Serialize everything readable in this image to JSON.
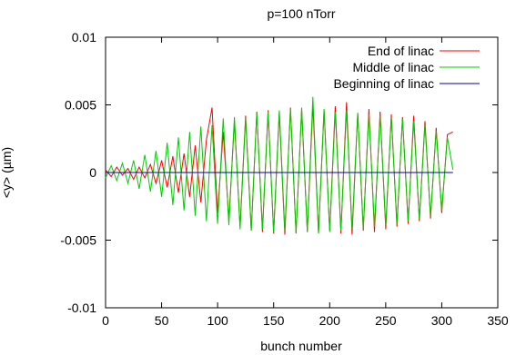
{
  "chart_data": {
    "type": "line",
    "title": "p=100 nTorr",
    "xlabel": "bunch number",
    "ylabel": "<y> (µm)",
    "xlim": [
      0,
      350
    ],
    "ylim": [
      -0.01,
      0.01
    ],
    "xticks": [
      "0",
      "50",
      "100",
      "150",
      "200",
      "250",
      "300",
      "350"
    ],
    "yticks": [
      "-0.01",
      "-0.005",
      "0",
      "0.005",
      "0.01"
    ],
    "legend_position": "top-right",
    "grid": false,
    "series": [
      {
        "name": "End of linac",
        "color": "#ff0000",
        "x": [
          0,
          5,
          10,
          15,
          20,
          25,
          30,
          35,
          40,
          45,
          50,
          55,
          60,
          65,
          70,
          75,
          80,
          85,
          90,
          95,
          100,
          105,
          110,
          115,
          120,
          125,
          130,
          135,
          140,
          145,
          150,
          155,
          160,
          165,
          170,
          175,
          180,
          185,
          190,
          195,
          200,
          205,
          210,
          215,
          220,
          225,
          230,
          235,
          240,
          245,
          250,
          255,
          260,
          265,
          270,
          275,
          280,
          285,
          290,
          295,
          300,
          305,
          310
        ],
        "y": [
          0.0002,
          -0.0003,
          0.0004,
          -0.0002,
          0.0003,
          -0.0005,
          0.0004,
          -0.0004,
          0.0006,
          -0.0008,
          0.0009,
          -0.0011,
          0.0012,
          -0.0015,
          0.0014,
          -0.0018,
          0.002,
          -0.0022,
          0.0024,
          0.0048,
          -0.003,
          0.003,
          -0.0035,
          0.0038,
          -0.004,
          0.0042,
          -0.0043,
          0.0045,
          -0.0044,
          0.0046,
          -0.0045,
          0.0044,
          -0.0046,
          0.0048,
          -0.0045,
          0.0047,
          -0.0044,
          0.005,
          -0.0045,
          0.0046,
          -0.0043,
          0.0049,
          -0.0045,
          0.0052,
          -0.0046,
          0.0044,
          -0.0043,
          0.0047,
          -0.0044,
          0.0045,
          -0.0042,
          0.0043,
          -0.004,
          0.0041,
          -0.0038,
          0.0042,
          -0.0036,
          0.0038,
          -0.0034,
          0.0033,
          -0.003,
          0.0028,
          0.003
        ]
      },
      {
        "name": "Middle of linac",
        "color": "#00cc00",
        "x": [
          0,
          5,
          10,
          15,
          20,
          25,
          30,
          35,
          40,
          45,
          50,
          55,
          60,
          65,
          70,
          75,
          80,
          85,
          90,
          95,
          100,
          105,
          110,
          115,
          120,
          125,
          130,
          135,
          140,
          145,
          150,
          155,
          160,
          165,
          170,
          175,
          180,
          185,
          190,
          195,
          200,
          205,
          210,
          215,
          220,
          225,
          230,
          235,
          240,
          245,
          250,
          255,
          260,
          265,
          270,
          275,
          280,
          285,
          290,
          295,
          300,
          305,
          310
        ],
        "y": [
          -0.0004,
          0.0005,
          -0.0006,
          0.0007,
          -0.0008,
          0.0009,
          -0.0012,
          0.0013,
          -0.0014,
          0.0016,
          -0.0018,
          0.0022,
          -0.0024,
          0.0026,
          -0.0028,
          0.003,
          -0.0032,
          0.0034,
          -0.0036,
          0.0035,
          -0.0038,
          0.004,
          -0.0039,
          0.0041,
          -0.0042,
          0.004,
          -0.0043,
          0.0044,
          -0.0042,
          0.0045,
          -0.0044,
          0.0046,
          -0.0043,
          0.0047,
          -0.0045,
          0.0048,
          -0.0044,
          0.0056,
          -0.0045,
          0.0047,
          -0.0044,
          0.0045,
          -0.0043,
          0.0046,
          -0.0042,
          0.0044,
          -0.0041,
          0.0043,
          -0.004,
          0.0042,
          -0.0039,
          0.0041,
          -0.0038,
          0.004,
          -0.0036,
          0.0038,
          -0.0034,
          0.0035,
          -0.0032,
          0.0031,
          -0.0028,
          0.0026,
          0.0002
        ]
      },
      {
        "name": "Beginning of linac",
        "color": "#0000aa",
        "x": [
          0,
          310
        ],
        "y": [
          0,
          0
        ]
      }
    ]
  }
}
